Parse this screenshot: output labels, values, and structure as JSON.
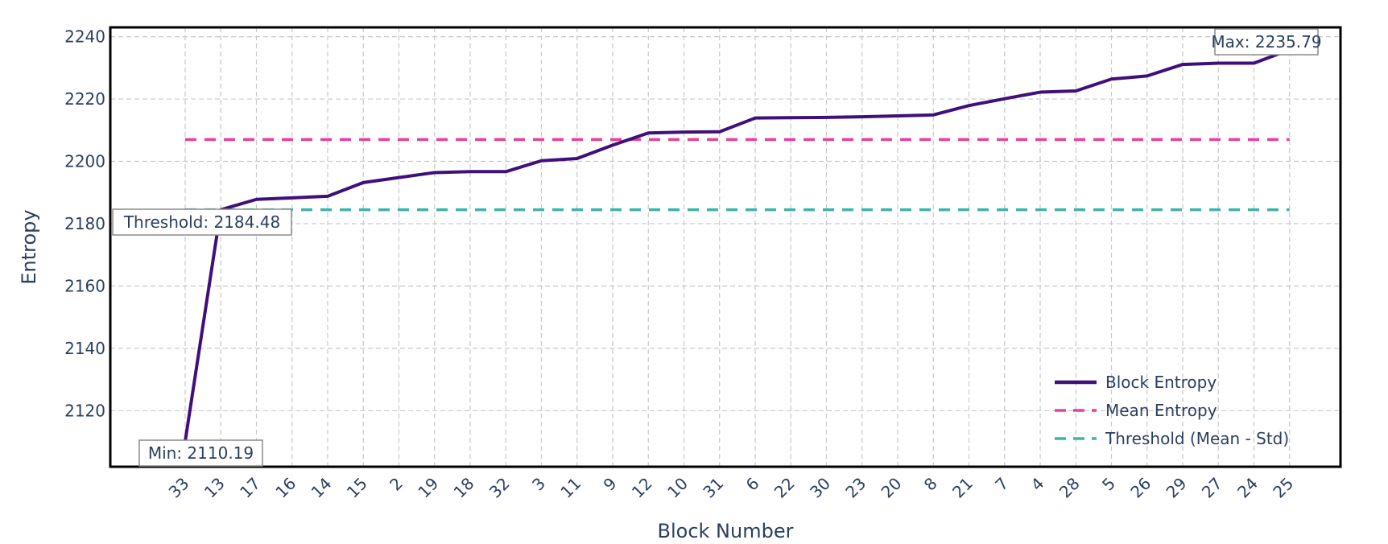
{
  "chart_data": {
    "type": "line",
    "title": "",
    "xlabel": "Block Number",
    "ylabel": "Entropy",
    "ylim": [
      2102,
      2243
    ],
    "yticks": [
      2120,
      2140,
      2160,
      2180,
      2200,
      2220,
      2240
    ],
    "grid": true,
    "legend_position": "bottom-right",
    "categories": [
      "33",
      "13",
      "17",
      "16",
      "14",
      "15",
      "2",
      "19",
      "18",
      "32",
      "3",
      "11",
      "9",
      "12",
      "10",
      "31",
      "6",
      "22",
      "30",
      "23",
      "20",
      "8",
      "21",
      "7",
      "4",
      "28",
      "5",
      "26",
      "29",
      "27",
      "24",
      "25"
    ],
    "series": [
      {
        "name": "Block Entropy",
        "style": "solid",
        "color": "#3f0f7a",
        "values": [
          2110.19,
          2184.48,
          2187.8,
          2188.3,
          2188.8,
          2193.2,
          2194.8,
          2196.4,
          2196.7,
          2196.7,
          2200.2,
          2200.9,
          2205.2,
          2209.1,
          2209.4,
          2209.5,
          2213.9,
          2214.0,
          2214.1,
          2214.3,
          2214.6,
          2214.9,
          2217.9,
          2220.1,
          2222.2,
          2222.6,
          2226.4,
          2227.4,
          2231.1,
          2231.5,
          2231.5,
          2235.79
        ]
      },
      {
        "name": "Mean Entropy",
        "style": "dash",
        "color": "#e8409a",
        "value": 2207.0
      },
      {
        "name": "Threshold (Mean - Std)",
        "style": "dash",
        "color": "#3fb3a8",
        "value": 2184.48
      }
    ],
    "annotations": [
      {
        "text": "Max: 2235.79",
        "category": "25",
        "value": 2235.79,
        "anchor": "max"
      },
      {
        "text": "Threshold: 2184.48",
        "category": "13",
        "value": 2184.48,
        "anchor": "threshold"
      },
      {
        "text": "Min: 2110.19",
        "category": "33",
        "value": 2110.19,
        "anchor": "min"
      }
    ]
  }
}
